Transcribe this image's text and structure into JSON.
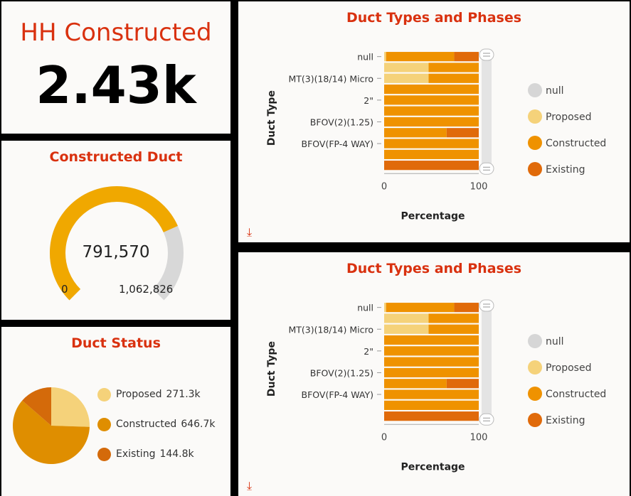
{
  "kpi": {
    "title": "HH Constructed",
    "value": "2.43k"
  },
  "gauge": {
    "title": "Constructed Duct",
    "value": 791570,
    "value_label": "791,570",
    "min": 0,
    "min_label": "0",
    "max": 1062826,
    "max_label": "1,062,826",
    "fill_color": "#f0a800",
    "track_color": "#d8d8d8"
  },
  "status": {
    "title": "Duct Status",
    "chart_data": {
      "type": "pie",
      "slices": [
        {
          "name": "Proposed",
          "label": "271.3k",
          "value": 271.3,
          "color": "#f5d27a"
        },
        {
          "name": "Constructed",
          "label": "646.7k",
          "value": 646.7,
          "color": "#df8e00"
        },
        {
          "name": "Existing",
          "label": "144.8k",
          "value": 144.8,
          "color": "#d46a0a"
        }
      ]
    }
  },
  "bar_panels": [
    {
      "title": "Duct Types and Phases",
      "download_icon": "download-icon",
      "chart_data": {
        "type": "bar",
        "orientation": "horizontal",
        "stacked": "percent",
        "xlabel": "Percentage",
        "ylabel": "Duct Type",
        "xlim": [
          0,
          100
        ],
        "xticks": [
          "0",
          "100"
        ],
        "categories": [
          "null",
          "",
          "MT(3)(18/14) Micro",
          "",
          "2\"",
          "",
          "BFOV(2)(1.25)",
          "",
          "BFOV(FP-4 WAY)",
          "",
          ""
        ],
        "series": [
          {
            "name": "null",
            "color": "#d6d6d6",
            "values": [
              0,
              0,
              0,
              0,
              0,
              0,
              0,
              0,
              0,
              0,
              0
            ]
          },
          {
            "name": "Proposed",
            "color": "#f5d27a",
            "values": [
              2,
              47,
              47,
              0,
              0,
              0,
              0,
              0,
              0,
              0,
              0
            ]
          },
          {
            "name": "Constructed",
            "color": "#ef9200",
            "values": [
              72,
              53,
              53,
              100,
              100,
              100,
              100,
              66,
              100,
              100,
              0
            ]
          },
          {
            "name": "Existing",
            "color": "#e06a0a",
            "values": [
              26,
              0,
              0,
              0,
              0,
              0,
              0,
              34,
              0,
              0,
              100
            ]
          }
        ],
        "legend": {
          "placement": "right"
        }
      }
    },
    {
      "title": "Duct Types and Phases",
      "download_icon": "download-icon",
      "chart_data": {
        "type": "bar",
        "orientation": "horizontal",
        "stacked": "percent",
        "xlabel": "Percentage",
        "ylabel": "Duct Type",
        "xlim": [
          0,
          100
        ],
        "xticks": [
          "0",
          "100"
        ],
        "categories": [
          "null",
          "",
          "MT(3)(18/14) Micro",
          "",
          "2\"",
          "",
          "BFOV(2)(1.25)",
          "",
          "BFOV(FP-4 WAY)",
          "",
          ""
        ],
        "series": [
          {
            "name": "null",
            "color": "#d6d6d6",
            "values": [
              0,
              0,
              0,
              0,
              0,
              0,
              0,
              0,
              0,
              0,
              0
            ]
          },
          {
            "name": "Proposed",
            "color": "#f5d27a",
            "values": [
              2,
              47,
              47,
              0,
              0,
              0,
              0,
              0,
              0,
              0,
              0
            ]
          },
          {
            "name": "Constructed",
            "color": "#ef9200",
            "values": [
              72,
              53,
              53,
              100,
              100,
              100,
              100,
              66,
              100,
              100,
              0
            ]
          },
          {
            "name": "Existing",
            "color": "#e06a0a",
            "values": [
              26,
              0,
              0,
              0,
              0,
              0,
              0,
              34,
              0,
              0,
              100
            ]
          }
        ],
        "legend": {
          "placement": "right"
        }
      }
    }
  ]
}
